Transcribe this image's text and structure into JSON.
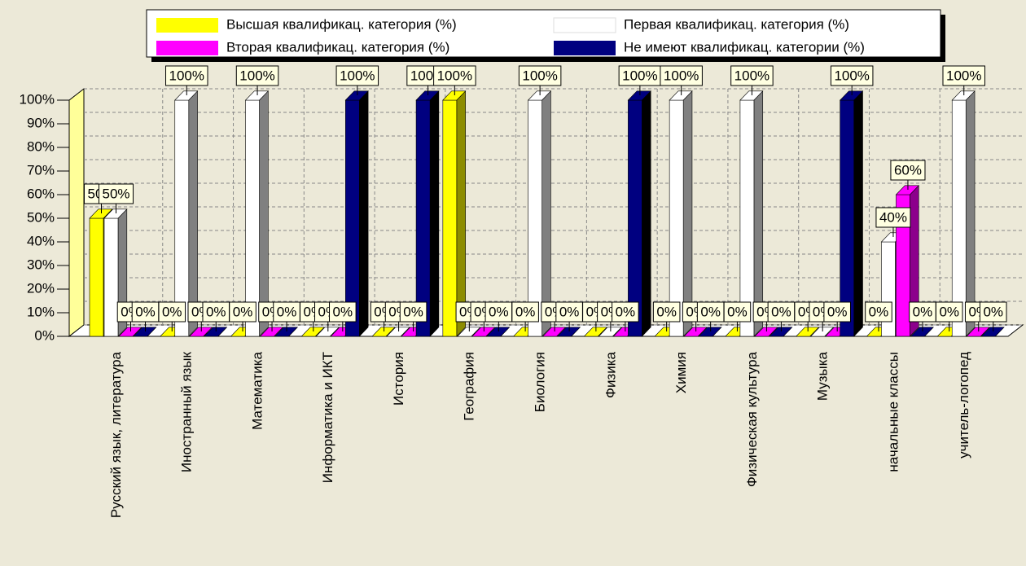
{
  "chart_data": {
    "type": "bar3d",
    "categories": [
      "Русский язык, литература",
      "Иностранный язык",
      "Математика",
      "Информатика и ИКТ",
      "История",
      "География",
      "Биология",
      "Физика",
      "Химия",
      "Физическая культура",
      "Музыка",
      "начальные классы",
      "учитель-логопед"
    ],
    "series": [
      {
        "name": "Высшая квалификац. категория (%)",
        "color": "#ffff00",
        "side": "#8c8c00",
        "values": [
          50,
          0,
          0,
          0,
          0,
          100,
          0,
          0,
          0,
          0,
          0,
          0,
          0
        ],
        "value_labels": [
          "50%",
          "0%",
          "0%",
          "0%",
          "0%",
          "100%",
          "0%",
          "0%",
          "0%",
          "0%",
          "0%",
          "0%",
          "0%"
        ]
      },
      {
        "name": "Первая квалификац. категория (%)",
        "color": "#ffffff",
        "side": "#808080",
        "values": [
          50,
          100,
          100,
          0,
          0,
          0,
          100,
          0,
          100,
          100,
          0,
          40,
          100
        ],
        "value_labels": [
          "50%",
          "100%",
          "100%",
          "0%",
          "0%",
          "0%",
          "100%",
          "0%",
          "100%",
          "100%",
          "0%",
          "40%",
          "100%"
        ]
      },
      {
        "name": "Вторая квалификац. категория (%)",
        "color": "#ff00ff",
        "side": "#8c008c",
        "values": [
          0,
          0,
          0,
          0,
          0,
          0,
          0,
          0,
          0,
          0,
          0,
          60,
          0
        ],
        "value_labels": [
          "0%",
          "0%",
          "0%",
          "0%",
          "0%",
          "0%",
          "0%",
          "0%",
          "0%",
          "0%",
          "0%",
          "60%",
          "0%"
        ]
      },
      {
        "name": "Не имеют квалификац. категории (%)",
        "color": "#000080",
        "side": "#000000",
        "values": [
          0,
          0,
          0,
          100,
          100,
          0,
          0,
          100,
          0,
          0,
          100,
          0,
          0
        ],
        "value_labels": [
          "0%",
          "0%",
          "0%",
          "100%",
          "100%",
          "0%",
          "0%",
          "100%",
          "0%",
          "0%",
          "100%",
          "0%",
          "0%"
        ]
      }
    ],
    "ylim": [
      0,
      100
    ],
    "yticks": [
      {
        "value": 0,
        "label": "0%"
      },
      {
        "value": 10,
        "label": "10%"
      },
      {
        "value": 20,
        "label": "20%"
      },
      {
        "value": 30,
        "label": "30%"
      },
      {
        "value": 40,
        "label": "40%"
      },
      {
        "value": 50,
        "label": "50%"
      },
      {
        "value": 60,
        "label": "60%"
      },
      {
        "value": 70,
        "label": "70%"
      },
      {
        "value": 80,
        "label": "80%"
      },
      {
        "value": 90,
        "label": "90%"
      },
      {
        "value": 100,
        "label": "100%"
      }
    ],
    "grid": true,
    "legend": "top"
  }
}
